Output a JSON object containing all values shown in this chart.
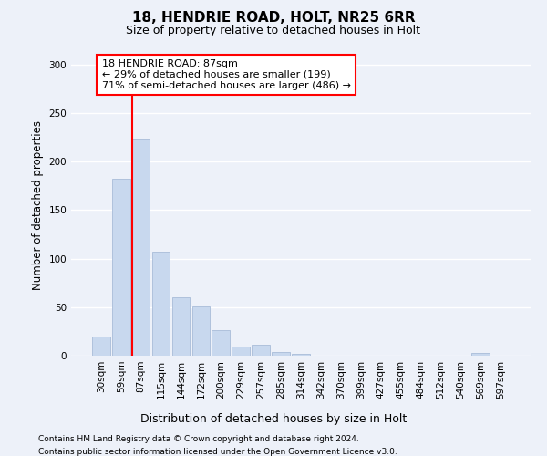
{
  "title": "18, HENDRIE ROAD, HOLT, NR25 6RR",
  "subtitle": "Size of property relative to detached houses in Holt",
  "xlabel": "Distribution of detached houses by size in Holt",
  "ylabel": "Number of detached properties",
  "footnote1": "Contains HM Land Registry data © Crown copyright and database right 2024.",
  "footnote2": "Contains public sector information licensed under the Open Government Licence v3.0.",
  "bins": [
    "30sqm",
    "59sqm",
    "87sqm",
    "115sqm",
    "144sqm",
    "172sqm",
    "200sqm",
    "229sqm",
    "257sqm",
    "285sqm",
    "314sqm",
    "342sqm",
    "370sqm",
    "399sqm",
    "427sqm",
    "455sqm",
    "484sqm",
    "512sqm",
    "540sqm",
    "569sqm",
    "597sqm"
  ],
  "values": [
    20,
    182,
    224,
    107,
    60,
    51,
    26,
    9,
    11,
    4,
    2,
    0,
    0,
    0,
    0,
    0,
    0,
    0,
    0,
    3,
    0
  ],
  "bar_color": "#c8d8ee",
  "bar_edge_color": "#a8bcd8",
  "vline_x_index": 2,
  "vline_color": "red",
  "annotation_line1": "18 HENDRIE ROAD: 87sqm",
  "annotation_line2": "← 29% of detached houses are smaller (199)",
  "annotation_line3": "71% of semi-detached houses are larger (486) →",
  "annotation_box_color": "white",
  "annotation_box_edge": "red",
  "ylim": [
    0,
    310
  ],
  "background_color": "#edf1f9",
  "plot_bg_color": "#edf1f9",
  "grid_color": "white",
  "title_fontsize": 11,
  "subtitle_fontsize": 9,
  "ylabel_fontsize": 8.5,
  "xlabel_fontsize": 9,
  "tick_fontsize": 7.5,
  "footnote_fontsize": 6.5
}
